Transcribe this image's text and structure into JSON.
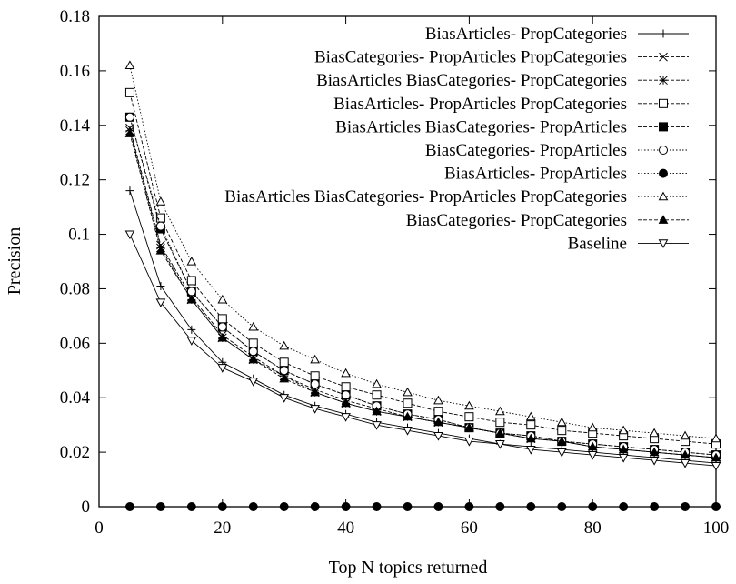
{
  "chart_data": {
    "type": "line",
    "title": "",
    "xlabel": "Top N topics returned",
    "ylabel": "Precision",
    "xlim": [
      0,
      100
    ],
    "ylim": [
      0,
      0.18
    ],
    "xticks": [
      0,
      20,
      40,
      60,
      80,
      100
    ],
    "xtick_labels": [
      "0",
      "20",
      "40",
      "60",
      "80",
      "100"
    ],
    "yticks": [
      0,
      0.02,
      0.04,
      0.06,
      0.08,
      0.1,
      0.12,
      0.14,
      0.16,
      0.18
    ],
    "ytick_labels": [
      "0",
      "0.02",
      "0.04",
      "0.06",
      "0.08",
      "0.1",
      "0.12",
      "0.14",
      "0.16",
      "0.18"
    ],
    "grid": false,
    "legend_position": "top-right",
    "x": [
      5,
      10,
      15,
      20,
      25,
      30,
      35,
      40,
      45,
      50,
      55,
      60,
      65,
      70,
      75,
      80,
      85,
      90,
      95,
      100
    ],
    "series": [
      {
        "name": "BiasArticles- PropCategories",
        "marker": "plus",
        "dash": "solid",
        "values": [
          0.116,
          0.081,
          0.065,
          0.053,
          0.047,
          0.041,
          0.037,
          0.034,
          0.031,
          0.029,
          0.027,
          0.025,
          0.023,
          0.022,
          0.021,
          0.02,
          0.019,
          0.018,
          0.017,
          0.016
        ]
      },
      {
        "name": "BiasCategories- PropArticles PropCategories",
        "marker": "cross",
        "dash": "dash",
        "values": [
          0.139,
          0.096,
          0.077,
          0.063,
          0.055,
          0.048,
          0.043,
          0.039,
          0.036,
          0.033,
          0.031,
          0.029,
          0.027,
          0.025,
          0.024,
          0.022,
          0.021,
          0.02,
          0.019,
          0.018
        ]
      },
      {
        "name": "BiasArticles BiasCategories- PropCategories",
        "marker": "asterisk",
        "dash": "dash",
        "values": [
          0.138,
          0.095,
          0.076,
          0.062,
          0.054,
          0.048,
          0.042,
          0.038,
          0.035,
          0.033,
          0.031,
          0.029,
          0.027,
          0.025,
          0.024,
          0.022,
          0.021,
          0.02,
          0.019,
          0.018
        ]
      },
      {
        "name": "BiasArticles- PropArticles PropCategories",
        "marker": "open-square",
        "dash": "dash",
        "values": [
          0.152,
          0.106,
          0.083,
          0.069,
          0.06,
          0.053,
          0.048,
          0.044,
          0.041,
          0.038,
          0.035,
          0.033,
          0.031,
          0.03,
          0.028,
          0.027,
          0.026,
          0.025,
          0.024,
          0.023
        ]
      },
      {
        "name": "BiasArticles BiasCategories- PropArticles",
        "marker": "filled-square",
        "dash": "dash",
        "values": [
          0.143,
          0.102,
          0.079,
          0.066,
          0.057,
          0.05,
          0.045,
          0.041,
          0.037,
          0.034,
          0.032,
          0.029,
          0.027,
          0.026,
          0.024,
          0.023,
          0.022,
          0.021,
          0.02,
          0.019
        ]
      },
      {
        "name": "BiasCategories- PropArticles",
        "marker": "open-circle",
        "dash": "dot",
        "values": [
          0.143,
          0.103,
          0.079,
          0.066,
          0.057,
          0.05,
          0.045,
          0.041,
          0.037,
          0.034,
          0.032,
          0.029,
          0.027,
          0.026,
          0.024,
          0.023,
          0.022,
          0.021,
          0.02,
          0.019
        ]
      },
      {
        "name": "BiasArticles- PropArticles",
        "marker": "filled-circle",
        "dash": "dot",
        "values": [
          0,
          0,
          0,
          0,
          0,
          0,
          0,
          0,
          0,
          0,
          0,
          0,
          0,
          0,
          0,
          0,
          0,
          0,
          0,
          0
        ]
      },
      {
        "name": "BiasArticles BiasCategories- PropArticles PropCategories",
        "marker": "open-triangle",
        "dash": "dot",
        "values": [
          0.162,
          0.112,
          0.09,
          0.076,
          0.066,
          0.059,
          0.054,
          0.049,
          0.045,
          0.042,
          0.039,
          0.037,
          0.035,
          0.033,
          0.031,
          0.029,
          0.028,
          0.027,
          0.026,
          0.025
        ]
      },
      {
        "name": "BiasCategories- PropCategories",
        "marker": "filled-triangle",
        "dash": "dash",
        "values": [
          0.137,
          0.094,
          0.076,
          0.062,
          0.054,
          0.047,
          0.042,
          0.038,
          0.035,
          0.033,
          0.031,
          0.029,
          0.027,
          0.025,
          0.024,
          0.022,
          0.021,
          0.02,
          0.019,
          0.018
        ]
      },
      {
        "name": "Baseline",
        "marker": "open-inv-triangle",
        "dash": "solid",
        "values": [
          0.1,
          0.075,
          0.061,
          0.051,
          0.046,
          0.04,
          0.036,
          0.033,
          0.03,
          0.028,
          0.026,
          0.024,
          0.023,
          0.021,
          0.02,
          0.019,
          0.018,
          0.017,
          0.016,
          0.015
        ]
      }
    ]
  }
}
